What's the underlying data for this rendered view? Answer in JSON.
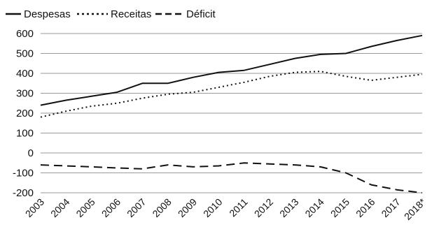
{
  "chart_data": {
    "type": "line",
    "categories": [
      "2003",
      "2004",
      "2005",
      "2006",
      "2007",
      "2008",
      "2009",
      "2010",
      "2011",
      "2012",
      "2013",
      "2014",
      "2015",
      "2016",
      "2017",
      "2018*"
    ],
    "series": [
      {
        "name": "Despesas",
        "values": [
          240,
          265,
          285,
          305,
          350,
          350,
          380,
          405,
          415,
          445,
          475,
          495,
          500,
          535,
          565,
          590
        ],
        "style": "solid"
      },
      {
        "name": "Receitas",
        "values": [
          180,
          210,
          235,
          250,
          275,
          295,
          305,
          330,
          355,
          385,
          405,
          410,
          385,
          365,
          380,
          395
        ],
        "style": "dotted"
      },
      {
        "name": "Déficit",
        "values": [
          -60,
          -65,
          -70,
          -75,
          -80,
          -60,
          -70,
          -65,
          -50,
          -55,
          -60,
          -70,
          -100,
          -160,
          -185,
          -200
        ],
        "style": "dashed"
      }
    ],
    "ylim": [
      -200,
      600
    ],
    "yticks": [
      "600",
      "500",
      "400",
      "300",
      "200",
      "100",
      "0",
      "-100",
      "-200"
    ],
    "grid": "horizontal",
    "legend_position": "top-left",
    "line_color": "#111111"
  }
}
